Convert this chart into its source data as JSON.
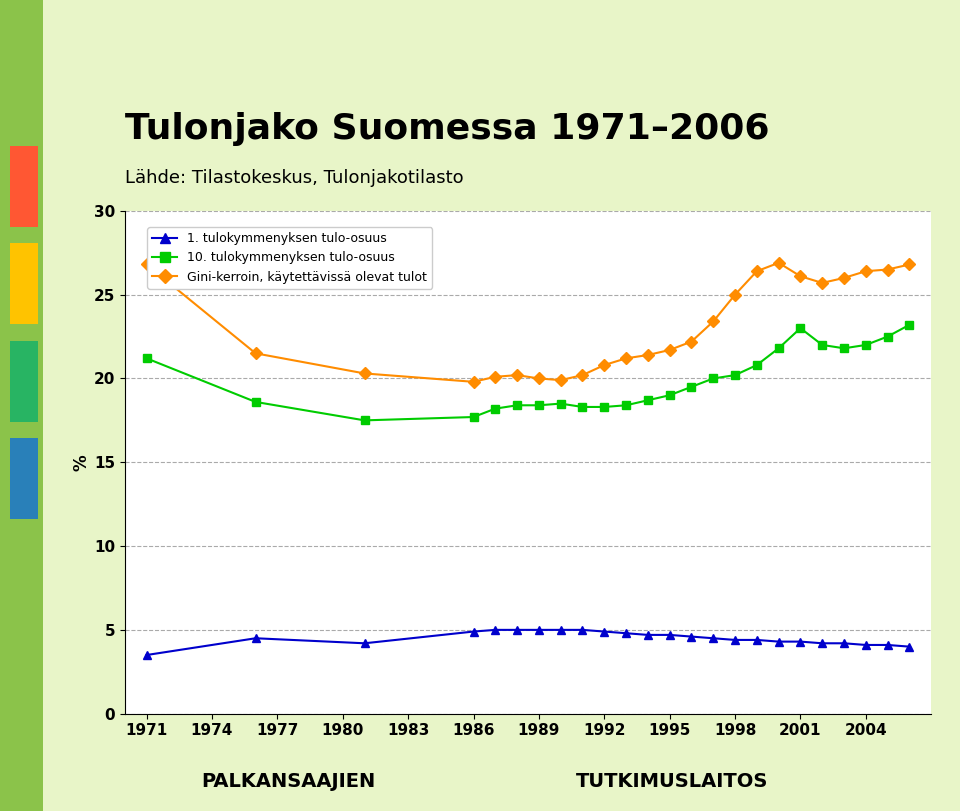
{
  "title": "Tulonjako Suomessa 1971–2006",
  "subtitle": "Lähde: Tilastokeskus, Tulonjakotilasto",
  "ylabel": "%",
  "ylim": [
    0,
    30
  ],
  "yticks": [
    0,
    5,
    10,
    15,
    20,
    25,
    30
  ],
  "xticks": [
    1971,
    1974,
    1977,
    1980,
    1983,
    1986,
    1989,
    1992,
    1995,
    1998,
    2001,
    2004
  ],
  "legend_labels": [
    "1. tulokymmenyksen tulo-osuus",
    "10. tulokymmenyksen tulo-osuus",
    "Gini-kerroin, käytettävissä olevat tulot"
  ],
  "series1_color": "#0000CC",
  "series2_color": "#00CC00",
  "series3_color": "#FF8C00",
  "background_color": "#FFFFFF",
  "title_color": "#000000",
  "series1": {
    "years": [
      1971,
      1976,
      1981,
      1986,
      1987,
      1988,
      1989,
      1990,
      1991,
      1992,
      1993,
      1994,
      1995,
      1996,
      1997,
      1998,
      1999,
      2000,
      2001,
      2002,
      2003,
      2004,
      2005,
      2006
    ],
    "values": [
      3.5,
      4.5,
      4.2,
      4.9,
      5.0,
      5.0,
      5.0,
      5.0,
      5.0,
      4.9,
      4.8,
      4.7,
      4.7,
      4.6,
      4.5,
      4.4,
      4.4,
      4.3,
      4.3,
      4.2,
      4.2,
      4.1,
      4.1,
      4.0
    ]
  },
  "series2": {
    "years": [
      1971,
      1976,
      1981,
      1986,
      1987,
      1988,
      1989,
      1990,
      1991,
      1992,
      1993,
      1994,
      1995,
      1996,
      1997,
      1998,
      1999,
      2000,
      2001,
      2002,
      2003,
      2004,
      2005,
      2006
    ],
    "values": [
      21.2,
      18.6,
      17.5,
      17.7,
      18.2,
      18.4,
      18.4,
      18.5,
      18.3,
      18.3,
      18.4,
      18.7,
      19.0,
      19.5,
      20.0,
      20.2,
      20.8,
      21.8,
      23.0,
      22.0,
      21.8,
      22.0,
      22.5,
      23.2
    ]
  },
  "series3": {
    "years": [
      1971,
      1976,
      1981,
      1986,
      1987,
      1988,
      1989,
      1990,
      1991,
      1992,
      1993,
      1994,
      1995,
      1996,
      1997,
      1998,
      1999,
      2000,
      2001,
      2002,
      2003,
      2004,
      2005,
      2006
    ],
    "values": [
      26.8,
      21.5,
      20.3,
      19.8,
      20.1,
      20.2,
      20.0,
      19.9,
      20.2,
      20.8,
      21.2,
      21.4,
      21.7,
      22.2,
      23.4,
      25.0,
      26.4,
      26.9,
      26.1,
      25.7,
      26.0,
      26.4,
      26.5,
      26.8
    ]
  }
}
